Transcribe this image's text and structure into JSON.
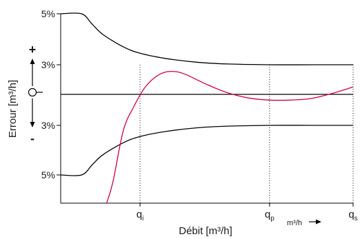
{
  "chart_data": {
    "type": "line",
    "title": "",
    "xlabel": "Débit [m³/h]",
    "ylabel": "Errour [m³/h]",
    "x_unit_label": "m³/h",
    "x_ticks": [
      {
        "label": "q",
        "sub": "i",
        "x": 0.38
      },
      {
        "label": "q",
        "sub": "p",
        "x": 1.0
      },
      {
        "label": "q",
        "sub": "s",
        "x": 1.4
      }
    ],
    "y_ticks": [
      {
        "label": "5%",
        "y": 5
      },
      {
        "label": "3%",
        "y": 3
      },
      {
        "label": "3%",
        "y": -3
      },
      {
        "label": "5%",
        "y": -5
      }
    ],
    "y_indicator": {
      "plus": "+",
      "zero": "O",
      "minus": "-"
    },
    "xlim": [
      0,
      1.4
    ],
    "ylim": [
      -7,
      5
    ],
    "series": [
      {
        "role": "upper-limit",
        "color": "#000000",
        "x": [
          0,
          0.1,
          0.15,
          0.2,
          0.3,
          0.38,
          0.5,
          0.65,
          0.8,
          1.0,
          1.2,
          1.4
        ],
        "y": [
          5,
          5,
          4.6,
          4.2,
          3.7,
          3.45,
          3.25,
          3.1,
          3.03,
          3.0,
          3.0,
          3.0
        ]
      },
      {
        "role": "lower-limit",
        "color": "#000000",
        "x": [
          0,
          0.1,
          0.15,
          0.2,
          0.3,
          0.38,
          0.5,
          0.65,
          0.8,
          1.0,
          1.2,
          1.4
        ],
        "y": [
          -5,
          -5,
          -4.6,
          -4.2,
          -3.7,
          -3.45,
          -3.25,
          -3.1,
          -3.03,
          -3.0,
          -3.0,
          -3.0
        ]
      },
      {
        "role": "zero-line",
        "color": "#000000",
        "x": [
          0,
          1.4
        ],
        "y": [
          0,
          0
        ]
      },
      {
        "role": "error-curve",
        "color": "#d0003c",
        "x": [
          0.22,
          0.25,
          0.3,
          0.35,
          0.4,
          0.45,
          0.5,
          0.55,
          0.6,
          0.7,
          0.8,
          0.9,
          1.0,
          1.1,
          1.2,
          1.3,
          1.4
        ],
        "y": [
          -7,
          -5.5,
          -3.2,
          -1.2,
          0.6,
          1.7,
          2.25,
          2.3,
          2.0,
          1.0,
          0.15,
          -0.35,
          -0.55,
          -0.55,
          -0.4,
          0.1,
          0.75
        ]
      }
    ],
    "vertical_guides": [
      0.38,
      1.0,
      1.4
    ]
  }
}
